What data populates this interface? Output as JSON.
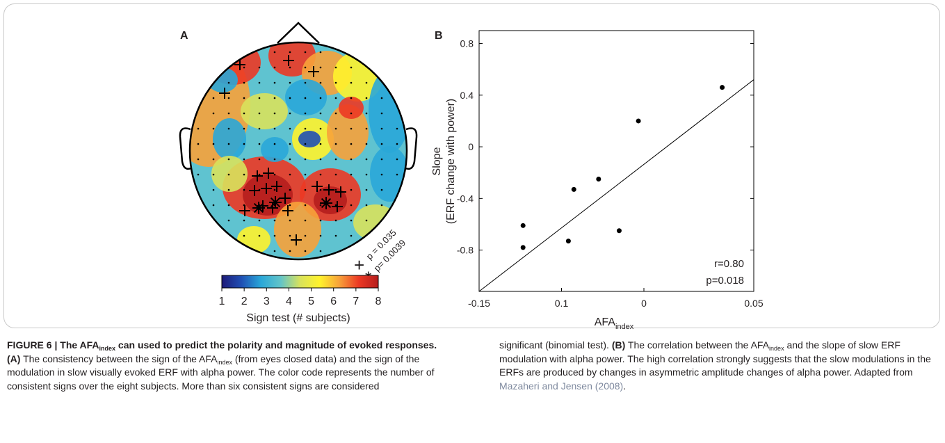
{
  "figure": {
    "panel_a_letter": "A",
    "panel_b_letter": "B"
  },
  "topomap": {
    "legend_p1": "p = 0.035",
    "legend_p2": "p= 0.0039",
    "plus_symbol": "+",
    "star_symbol": "*",
    "colorbar_ticks": [
      "1",
      "2",
      "3",
      "4",
      "5",
      "6",
      "7",
      "8"
    ],
    "colorbar_label": "Sign test  (# subjects)",
    "colormap": [
      "#1e1a78",
      "#1f4fb4",
      "#2aa7d8",
      "#61c4c9",
      "#d8e25c",
      "#fff32c",
      "#f7a23a",
      "#ec3924",
      "#b51d1d"
    ]
  },
  "chart_data": {
    "type": "scatter",
    "title": "",
    "xlabel": "AFA",
    "xlabel_sub": "index",
    "ylabel_line1": "Slope",
    "ylabel_line2": "(ERF change with power)",
    "x_ticks": [
      "-0.15",
      "0.1",
      "0",
      "0.05"
    ],
    "y_ticks": [
      "0.8",
      "0.4",
      "0",
      "-0.4",
      "-0.8"
    ],
    "xlim": [
      -0.15,
      0.05
    ],
    "ylim": [
      -1.12,
      0.9
    ],
    "points": [
      {
        "x": -0.118,
        "y": -0.61
      },
      {
        "x": -0.118,
        "y": -0.78
      },
      {
        "x": -0.081,
        "y": -0.33
      },
      {
        "x": -0.085,
        "y": -0.73
      },
      {
        "x": -0.063,
        "y": -0.25
      },
      {
        "x": -0.048,
        "y": -0.65
      },
      {
        "x": -0.034,
        "y": 0.2
      },
      {
        "x": 0.027,
        "y": 0.46
      }
    ],
    "fit_line": {
      "x": [
        -0.15,
        0.05
      ],
      "y": [
        -1.12,
        0.52
      ]
    },
    "annotation_r": "r=0.80",
    "annotation_p": "p=0.018"
  },
  "caption": {
    "figure_label": "FIGURE 6 | ",
    "title_pre": "The AFA",
    "title_sub": "index",
    "title_post": " can used to predict the polarity and magnitude of evoked responses.",
    "a_label": "(A)",
    "a_text_1": " The consistency between the sign of the AFA",
    "a_text_sub": "index",
    "a_text_2": " (from eyes closed data) and the sign of the modulation in slow visually evoked ERF with alpha power. The color code represents the number of consistent signs over the eight subjects. More than six consistent signs are considered",
    "right_text_1": "significant (binomial test). ",
    "b_label": "(B)",
    "b_text_1": " The correlation between the AFA",
    "b_text_sub": "index",
    "b_text_2": " and the slope of slow ERF modulation with alpha power. The high correlation strongly suggests that the slow modulations in the ERFs are produced by changes in asymmetric amplitude changes of alpha power. Adapted from ",
    "reference": "Mazaheri and Jensen (2008)",
    "end": "."
  }
}
